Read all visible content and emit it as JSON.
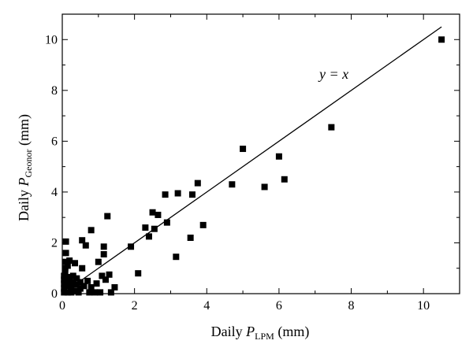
{
  "chart_data": {
    "type": "scatter",
    "xlabel": {
      "prefix": "Daily ",
      "var": "P",
      "sub": "LPM",
      "suffix": " (mm)"
    },
    "ylabel": {
      "prefix": "Daily ",
      "var": "P",
      "sub": "Geonor",
      "suffix": " (mm)"
    },
    "xlim": [
      0,
      11
    ],
    "ylim": [
      0,
      11
    ],
    "xticks": [
      0,
      2,
      4,
      6,
      8,
      10
    ],
    "yticks": [
      0,
      2,
      4,
      6,
      8,
      10
    ],
    "grid": false,
    "reference_line": {
      "label": "y = x",
      "from": [
        0,
        0
      ],
      "to": [
        10.5,
        10.5
      ]
    },
    "points": [
      [
        0.05,
        0.05
      ],
      [
        0.05,
        0.2
      ],
      [
        0.05,
        0.4
      ],
      [
        0.05,
        0.55
      ],
      [
        0.05,
        0.7
      ],
      [
        0.08,
        0.85
      ],
      [
        0.08,
        1.0
      ],
      [
        0.08,
        1.25
      ],
      [
        0.1,
        1.6
      ],
      [
        0.1,
        2.05
      ],
      [
        0.15,
        0.05
      ],
      [
        0.15,
        0.3
      ],
      [
        0.15,
        0.5
      ],
      [
        0.15,
        1.1
      ],
      [
        0.2,
        0.65
      ],
      [
        0.2,
        1.3
      ],
      [
        0.25,
        0.05
      ],
      [
        0.25,
        0.25
      ],
      [
        0.3,
        0.45
      ],
      [
        0.3,
        0.7
      ],
      [
        0.35,
        0.1
      ],
      [
        0.35,
        1.2
      ],
      [
        0.4,
        0.35
      ],
      [
        0.4,
        0.6
      ],
      [
        0.45,
        0.05
      ],
      [
        0.5,
        0.2
      ],
      [
        0.5,
        0.45
      ],
      [
        0.55,
        1.0
      ],
      [
        0.55,
        2.1
      ],
      [
        0.6,
        0.3
      ],
      [
        0.65,
        1.9
      ],
      [
        0.7,
        0.5
      ],
      [
        0.75,
        0.05
      ],
      [
        0.8,
        0.25
      ],
      [
        0.8,
        2.5
      ],
      [
        0.9,
        0.05
      ],
      [
        0.95,
        0.4
      ],
      [
        1.0,
        1.25
      ],
      [
        1.05,
        0.05
      ],
      [
        1.1,
        0.7
      ],
      [
        1.15,
        1.55
      ],
      [
        1.15,
        1.85
      ],
      [
        1.2,
        0.55
      ],
      [
        1.25,
        3.05
      ],
      [
        1.3,
        0.75
      ],
      [
        1.35,
        0.05
      ],
      [
        1.45,
        0.25
      ],
      [
        1.9,
        1.85
      ],
      [
        2.1,
        0.8
      ],
      [
        2.3,
        2.6
      ],
      [
        2.4,
        2.25
      ],
      [
        2.5,
        3.2
      ],
      [
        2.55,
        2.55
      ],
      [
        2.65,
        3.1
      ],
      [
        2.85,
        3.9
      ],
      [
        2.9,
        2.8
      ],
      [
        3.15,
        1.45
      ],
      [
        3.2,
        3.95
      ],
      [
        3.55,
        2.2
      ],
      [
        3.6,
        3.9
      ],
      [
        3.75,
        4.35
      ],
      [
        3.9,
        2.7
      ],
      [
        4.7,
        4.3
      ],
      [
        5.0,
        5.7
      ],
      [
        5.6,
        4.2
      ],
      [
        6.0,
        5.4
      ],
      [
        6.15,
        4.5
      ],
      [
        7.45,
        6.55
      ],
      [
        10.5,
        10.0
      ]
    ]
  }
}
